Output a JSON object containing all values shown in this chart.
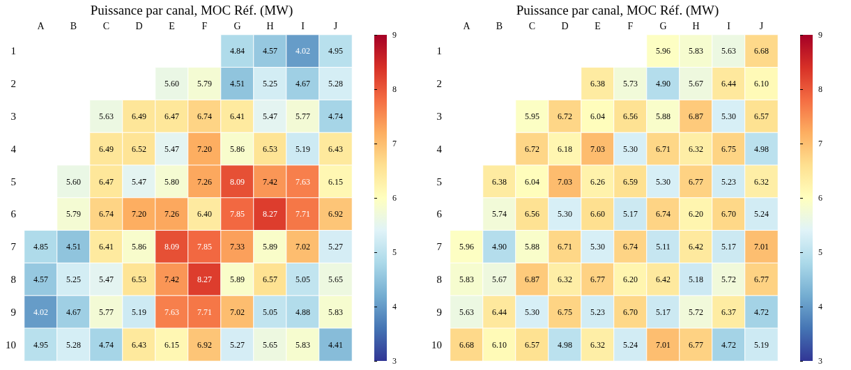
{
  "chart_data": [
    {
      "type": "heatmap",
      "title": "Puissance par canal, MOC Réf. (MW)",
      "categories": [
        "A",
        "B",
        "C",
        "D",
        "E",
        "F",
        "G",
        "H",
        "I",
        "J"
      ],
      "y_categories": [
        "1",
        "2",
        "3",
        "4",
        "5",
        "6",
        "7",
        "8",
        "9",
        "10"
      ],
      "cells": [
        [
          null,
          null,
          null,
          null,
          null,
          null,
          4.84,
          4.57,
          4.02,
          4.95
        ],
        [
          null,
          null,
          null,
          null,
          5.6,
          5.79,
          4.51,
          5.25,
          4.67,
          5.28
        ],
        [
          null,
          null,
          5.63,
          6.49,
          6.47,
          6.74,
          6.41,
          5.47,
          5.77,
          4.74
        ],
        [
          null,
          null,
          6.49,
          6.52,
          5.47,
          7.2,
          5.86,
          6.53,
          5.19,
          6.43
        ],
        [
          null,
          5.6,
          6.47,
          5.47,
          5.8,
          7.26,
          8.09,
          7.42,
          7.63,
          6.15
        ],
        [
          null,
          5.79,
          6.74,
          7.2,
          7.26,
          6.4,
          7.85,
          8.27,
          7.71,
          6.92
        ],
        [
          4.85,
          4.51,
          6.41,
          5.86,
          8.09,
          7.85,
          7.33,
          5.89,
          7.02,
          5.27
        ],
        [
          4.57,
          5.25,
          5.47,
          6.53,
          7.42,
          8.27,
          5.89,
          6.57,
          5.05,
          5.65
        ],
        [
          4.02,
          4.67,
          5.77,
          5.19,
          7.63,
          7.71,
          7.02,
          5.05,
          4.88,
          5.83
        ],
        [
          4.95,
          5.28,
          4.74,
          6.43,
          6.15,
          6.92,
          5.27,
          5.65,
          5.83,
          4.41
        ]
      ],
      "cell_labels": [
        [
          null,
          null,
          null,
          null,
          null,
          null,
          "4.84",
          "4.57",
          "4.02",
          "4.95"
        ],
        [
          null,
          null,
          null,
          null,
          "5.60",
          "5.79",
          "4.51",
          "5.25",
          "4.67",
          "5.28"
        ],
        [
          null,
          null,
          "5.63",
          "6.49",
          "6.47",
          "6.74",
          "6.41",
          "5.47",
          "5.77",
          "4.74"
        ],
        [
          null,
          null,
          "6.49",
          "6.52",
          "5.47",
          "7.20",
          "5.86",
          "6.53",
          "5.19",
          "6.43"
        ],
        [
          null,
          "5.60",
          "6.47",
          "5.47",
          "5.80",
          "7.26",
          "8.09",
          "7.42",
          "7.63",
          "6.15"
        ],
        [
          null,
          "5.79",
          "6.74",
          "7.20",
          "7.26",
          "6.40",
          "7.85",
          "8.27",
          "7.71",
          "6.92"
        ],
        [
          "4.85",
          "4.51",
          "6.41",
          "5.86",
          "8.09",
          "7.85",
          "7.33",
          "5.89",
          "7.02",
          "5.27"
        ],
        [
          "4.57",
          "5.25",
          "5.47",
          "6.53",
          "7.42",
          "8.27",
          "5.89",
          "6.57",
          "5.05",
          "5.65"
        ],
        [
          "4.02",
          "4.67",
          "5.77",
          "5.19",
          "7.63",
          "7.71",
          "7.02",
          "5.05",
          "4.88",
          "5.83"
        ],
        [
          "4.95",
          "5.28",
          "4.74",
          "6.43",
          "6.15",
          "6.92",
          "5.27",
          "5.65",
          "5.83",
          "4.41"
        ]
      ],
      "clim": [
        3,
        9
      ],
      "cticks": [
        3,
        4,
        5,
        6,
        7,
        8,
        9
      ],
      "data_labels": true
    },
    {
      "type": "heatmap",
      "title": "Puissance par canal, MOC Réf. (MW)",
      "categories": [
        "A",
        "B",
        "C",
        "D",
        "E",
        "F",
        "G",
        "H",
        "I",
        "J"
      ],
      "y_categories": [
        "1",
        "2",
        "3",
        "4",
        "5",
        "6",
        "7",
        "8",
        "9",
        "10"
      ],
      "cells": [
        [
          null,
          null,
          null,
          null,
          null,
          null,
          5.96,
          5.83,
          5.63,
          6.68
        ],
        [
          null,
          null,
          null,
          null,
          6.38,
          5.73,
          4.9,
          5.67,
          6.44,
          6.1
        ],
        [
          null,
          null,
          5.95,
          6.72,
          6.04,
          6.56,
          5.88,
          6.87,
          5.3,
          6.57
        ],
        [
          null,
          null,
          6.72,
          6.18,
          7.03,
          5.3,
          6.71,
          6.32,
          6.75,
          4.98
        ],
        [
          null,
          6.38,
          6.04,
          7.03,
          6.26,
          6.59,
          5.3,
          6.77,
          5.23,
          6.32
        ],
        [
          null,
          5.74,
          6.56,
          5.3,
          6.6,
          5.17,
          6.74,
          6.2,
          6.7,
          5.24
        ],
        [
          5.96,
          4.9,
          5.88,
          6.71,
          5.3,
          6.74,
          5.11,
          6.42,
          5.17,
          7.01
        ],
        [
          5.83,
          5.67,
          6.87,
          6.32,
          6.77,
          6.2,
          6.42,
          5.18,
          5.72,
          6.77
        ],
        [
          5.63,
          6.44,
          5.3,
          6.75,
          5.23,
          6.7,
          5.17,
          5.72,
          6.37,
          4.72
        ],
        [
          6.68,
          6.1,
          6.57,
          4.98,
          6.32,
          5.24,
          7.01,
          6.77,
          4.72,
          5.19
        ]
      ],
      "cell_labels": [
        [
          null,
          null,
          null,
          null,
          null,
          null,
          "5.96",
          "5.83",
          "5.63",
          "6.68"
        ],
        [
          null,
          null,
          null,
          null,
          "6.38",
          "5.73",
          "4.90",
          "5.67",
          "6.44",
          "6.10"
        ],
        [
          null,
          null,
          "5.95",
          "6.72",
          "6.04",
          "6.56",
          "5.88",
          "6.87",
          "5.30",
          "6.57"
        ],
        [
          null,
          null,
          "6.72",
          "6.18",
          "7.03",
          "5.30",
          "6.71",
          "6.32",
          "6.75",
          "4.98"
        ],
        [
          null,
          "6.38",
          "6.04",
          "7.03",
          "6.26",
          "6.59",
          "5.30",
          "6.77",
          "5.23",
          "6.32"
        ],
        [
          null,
          "5.74",
          "6.56",
          "5.30",
          "6.60",
          "5.17",
          "6.74",
          "6.20",
          "6.70",
          "5.24"
        ],
        [
          "5.96",
          "4.90",
          "5.88",
          "6.71",
          "5.30",
          "6.74",
          "5.11",
          "6.42",
          "5.17",
          "7.01"
        ],
        [
          "5.83",
          "5.67",
          "6.87",
          "6.32",
          "6.77",
          "6.20",
          "6.42",
          "5.18",
          "5.72",
          "6.77"
        ],
        [
          "5.63",
          "6.44",
          "5.30",
          "6.75",
          "5.23",
          "6.70",
          "5.17",
          "5.72",
          "6.37",
          "4.72"
        ],
        [
          "6.68",
          "6.10",
          "6.57",
          "4.98",
          "6.32",
          "5.24",
          "7.01",
          "6.77",
          "4.72",
          "5.19"
        ]
      ],
      "clim": [
        3,
        9
      ],
      "cticks": [
        3,
        4,
        5,
        6,
        7,
        8,
        9
      ],
      "data_labels": true
    }
  ]
}
